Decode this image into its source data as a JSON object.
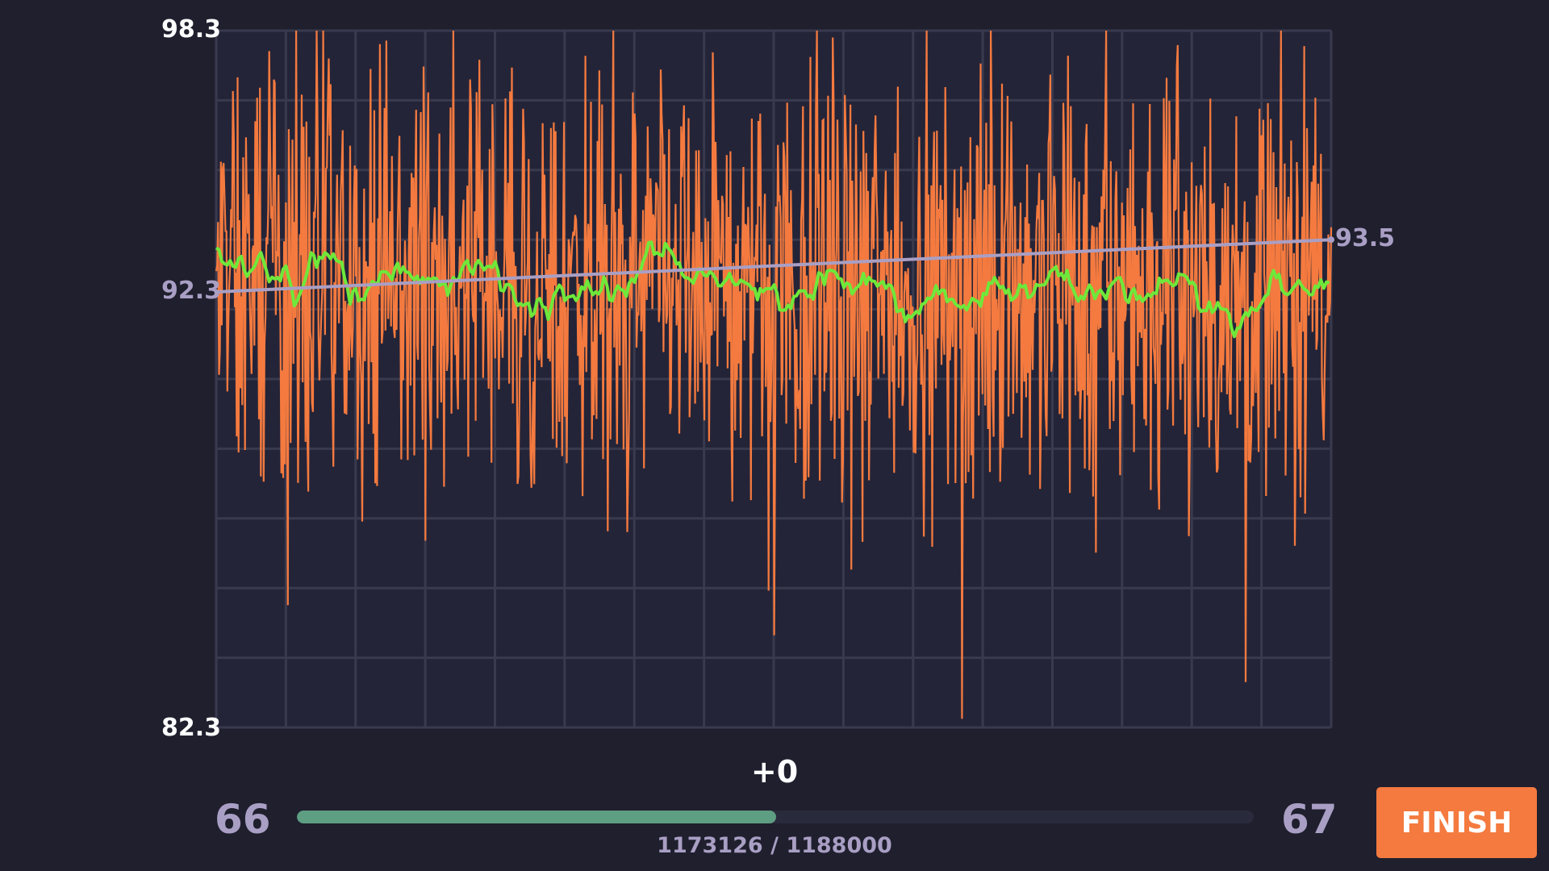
{
  "chart_data": {
    "type": "line",
    "ylim": [
      82.3,
      98.3
    ],
    "y_ticks": {
      "max": "98.3",
      "mid": "92.3",
      "min": "82.3"
    },
    "end_value_label": "93.5",
    "grid": true,
    "trend": {
      "start": 92.3,
      "end": 93.5
    },
    "raw_series": {
      "color": "#f47a3f",
      "points": 1200,
      "mean": 92.6,
      "approx_min": 82.3,
      "approx_max": 98.3
    },
    "smoothed_series": {
      "color": "#6ee83a"
    },
    "trend_color": "#a99fc4"
  },
  "hud": {
    "gain": "+0",
    "level_current": "66",
    "level_next": "67",
    "progress_value": 1173126,
    "progress_total": 1188000,
    "progress_text": "1173126 / 1188000",
    "finish_label": "FINISH"
  },
  "colors": {
    "background": "#1f1f2e",
    "plot_background": "#242438",
    "accent": "#f47a3f",
    "progress_fill": "#5e9e82",
    "muted_text": "#a99fc4"
  }
}
